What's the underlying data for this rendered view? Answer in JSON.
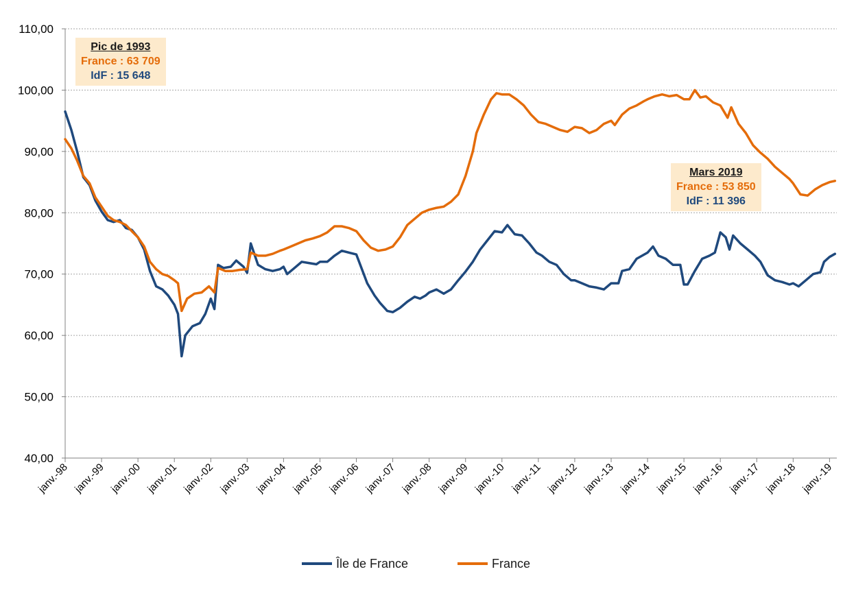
{
  "chart_data": {
    "type": "line",
    "title": "",
    "xlabel": "",
    "ylabel": "",
    "ylim": [
      40,
      110
    ],
    "yticks": [
      "40,00",
      "50,00",
      "60,00",
      "70,00",
      "80,00",
      "90,00",
      "100,00",
      "110,00"
    ],
    "xticks": [
      "janv.-98",
      "janv.-99",
      "janv.-00",
      "janv.-01",
      "janv.-02",
      "janv.-03",
      "janv.-04",
      "janv.-05",
      "janv.-06",
      "janv.-07",
      "janv.-08",
      "janv.-09",
      "janv.-10",
      "janv.-11",
      "janv.-12",
      "janv.-13",
      "janv.-14",
      "janv.-15",
      "janv.-16",
      "janv.-17",
      "janv.-18",
      "janv.-19"
    ],
    "grid": true,
    "legend_position": "bottom",
    "series": [
      {
        "name": "Île de France",
        "color": "#1f497d",
        "points": [
          [
            1998.0,
            96.5
          ],
          [
            1998.17,
            93.5
          ],
          [
            1998.33,
            90.0
          ],
          [
            1998.5,
            85.8
          ],
          [
            1998.67,
            84.5
          ],
          [
            1998.83,
            82.0
          ],
          [
            1999.0,
            80.2
          ],
          [
            1999.17,
            78.8
          ],
          [
            1999.33,
            78.5
          ],
          [
            1999.5,
            78.8
          ],
          [
            1999.67,
            77.5
          ],
          [
            1999.83,
            77.2
          ],
          [
            2000.0,
            76.0
          ],
          [
            2000.17,
            74.0
          ],
          [
            2000.33,
            70.5
          ],
          [
            2000.5,
            68.0
          ],
          [
            2000.67,
            67.5
          ],
          [
            2000.83,
            66.5
          ],
          [
            2001.0,
            65.0
          ],
          [
            2001.1,
            63.5
          ],
          [
            2001.2,
            56.6
          ],
          [
            2001.3,
            60.0
          ],
          [
            2001.5,
            61.5
          ],
          [
            2001.7,
            62.0
          ],
          [
            2001.85,
            63.5
          ],
          [
            2002.0,
            66.0
          ],
          [
            2002.1,
            64.3
          ],
          [
            2002.2,
            71.5
          ],
          [
            2002.35,
            71.0
          ],
          [
            2002.55,
            71.2
          ],
          [
            2002.7,
            72.2
          ],
          [
            2002.9,
            71.2
          ],
          [
            2003.0,
            70.2
          ],
          [
            2003.1,
            75.0
          ],
          [
            2003.3,
            71.5
          ],
          [
            2003.5,
            70.8
          ],
          [
            2003.7,
            70.5
          ],
          [
            2003.9,
            70.8
          ],
          [
            2004.0,
            71.2
          ],
          [
            2004.1,
            70.0
          ],
          [
            2004.3,
            71.0
          ],
          [
            2004.5,
            72.0
          ],
          [
            2004.7,
            71.8
          ],
          [
            2004.9,
            71.6
          ],
          [
            2005.0,
            72.0
          ],
          [
            2005.2,
            72.0
          ],
          [
            2005.4,
            73.0
          ],
          [
            2005.6,
            73.8
          ],
          [
            2005.8,
            73.5
          ],
          [
            2006.0,
            73.2
          ],
          [
            2006.3,
            68.5
          ],
          [
            2006.5,
            66.5
          ],
          [
            2006.65,
            65.3
          ],
          [
            2006.85,
            64.0
          ],
          [
            2007.0,
            63.8
          ],
          [
            2007.2,
            64.5
          ],
          [
            2007.4,
            65.5
          ],
          [
            2007.6,
            66.3
          ],
          [
            2007.75,
            66.0
          ],
          [
            2007.9,
            66.5
          ],
          [
            2008.0,
            67.0
          ],
          [
            2008.2,
            67.5
          ],
          [
            2008.4,
            66.8
          ],
          [
            2008.6,
            67.5
          ],
          [
            2008.8,
            69.0
          ],
          [
            2009.0,
            70.4
          ],
          [
            2009.2,
            72.0
          ],
          [
            2009.4,
            74.0
          ],
          [
            2009.6,
            75.5
          ],
          [
            2009.8,
            77.0
          ],
          [
            2010.0,
            76.8
          ],
          [
            2010.15,
            78.0
          ],
          [
            2010.35,
            76.5
          ],
          [
            2010.55,
            76.3
          ],
          [
            2010.75,
            75.0
          ],
          [
            2010.95,
            73.5
          ],
          [
            2011.1,
            73.0
          ],
          [
            2011.3,
            72.0
          ],
          [
            2011.5,
            71.5
          ],
          [
            2011.7,
            70.0
          ],
          [
            2011.9,
            69.0
          ],
          [
            2012.0,
            69.0
          ],
          [
            2012.2,
            68.5
          ],
          [
            2012.4,
            68.0
          ],
          [
            2012.6,
            67.8
          ],
          [
            2012.8,
            67.5
          ],
          [
            2013.0,
            68.5
          ],
          [
            2013.2,
            68.5
          ],
          [
            2013.3,
            70.5
          ],
          [
            2013.5,
            70.8
          ],
          [
            2013.7,
            72.5
          ],
          [
            2013.85,
            73.0
          ],
          [
            2014.0,
            73.5
          ],
          [
            2014.15,
            74.5
          ],
          [
            2014.3,
            73.0
          ],
          [
            2014.5,
            72.5
          ],
          [
            2014.7,
            71.5
          ],
          [
            2014.9,
            71.5
          ],
          [
            2015.0,
            68.3
          ],
          [
            2015.1,
            68.3
          ],
          [
            2015.3,
            70.5
          ],
          [
            2015.5,
            72.5
          ],
          [
            2015.7,
            73.0
          ],
          [
            2015.85,
            73.5
          ],
          [
            2016.0,
            76.8
          ],
          [
            2016.15,
            76.0
          ],
          [
            2016.25,
            74.0
          ],
          [
            2016.35,
            76.3
          ],
          [
            2016.55,
            75.0
          ],
          [
            2016.75,
            74.0
          ],
          [
            2016.95,
            73.0
          ],
          [
            2017.1,
            72.0
          ],
          [
            2017.3,
            69.8
          ],
          [
            2017.5,
            69.0
          ],
          [
            2017.7,
            68.7
          ],
          [
            2017.9,
            68.3
          ],
          [
            2018.0,
            68.5
          ],
          [
            2018.15,
            68.0
          ],
          [
            2018.35,
            69.0
          ],
          [
            2018.55,
            70.0
          ],
          [
            2018.75,
            70.3
          ],
          [
            2018.85,
            72.0
          ],
          [
            2019.0,
            72.8
          ],
          [
            2019.15,
            73.3
          ]
        ]
      },
      {
        "name": "France",
        "color": "#e46c0a",
        "points": [
          [
            1998.0,
            92.0
          ],
          [
            1998.17,
            90.5
          ],
          [
            1998.33,
            88.5
          ],
          [
            1998.5,
            86.0
          ],
          [
            1998.67,
            84.8
          ],
          [
            1998.83,
            82.5
          ],
          [
            1999.0,
            81.0
          ],
          [
            1999.17,
            79.5
          ],
          [
            1999.33,
            78.8
          ],
          [
            1999.5,
            78.5
          ],
          [
            1999.67,
            78.0
          ],
          [
            1999.83,
            77.0
          ],
          [
            2000.0,
            76.0
          ],
          [
            2000.17,
            74.5
          ],
          [
            2000.33,
            72.0
          ],
          [
            2000.5,
            70.8
          ],
          [
            2000.67,
            70.0
          ],
          [
            2000.83,
            69.7
          ],
          [
            2001.0,
            69.0
          ],
          [
            2001.1,
            68.5
          ],
          [
            2001.2,
            64.0
          ],
          [
            2001.35,
            66.0
          ],
          [
            2001.55,
            66.8
          ],
          [
            2001.75,
            67.0
          ],
          [
            2001.95,
            68.0
          ],
          [
            2002.1,
            67.0
          ],
          [
            2002.2,
            71.0
          ],
          [
            2002.4,
            70.5
          ],
          [
            2002.6,
            70.5
          ],
          [
            2002.8,
            70.7
          ],
          [
            2003.0,
            70.8
          ],
          [
            2003.1,
            73.5
          ],
          [
            2003.3,
            73.0
          ],
          [
            2003.5,
            73.0
          ],
          [
            2003.7,
            73.3
          ],
          [
            2003.9,
            73.8
          ],
          [
            2004.0,
            74.0
          ],
          [
            2004.2,
            74.5
          ],
          [
            2004.4,
            75.0
          ],
          [
            2004.6,
            75.5
          ],
          [
            2004.8,
            75.8
          ],
          [
            2005.0,
            76.2
          ],
          [
            2005.2,
            76.8
          ],
          [
            2005.4,
            77.8
          ],
          [
            2005.6,
            77.8
          ],
          [
            2005.8,
            77.5
          ],
          [
            2006.0,
            77.0
          ],
          [
            2006.2,
            75.5
          ],
          [
            2006.4,
            74.3
          ],
          [
            2006.6,
            73.8
          ],
          [
            2006.8,
            74.0
          ],
          [
            2007.0,
            74.5
          ],
          [
            2007.2,
            76.0
          ],
          [
            2007.4,
            78.0
          ],
          [
            2007.6,
            79.0
          ],
          [
            2007.8,
            80.0
          ],
          [
            2008.0,
            80.5
          ],
          [
            2008.2,
            80.8
          ],
          [
            2008.4,
            81.0
          ],
          [
            2008.6,
            81.8
          ],
          [
            2008.8,
            83.0
          ],
          [
            2009.0,
            86.0
          ],
          [
            2009.2,
            90.0
          ],
          [
            2009.3,
            93.0
          ],
          [
            2009.5,
            96.0
          ],
          [
            2009.7,
            98.5
          ],
          [
            2009.85,
            99.5
          ],
          [
            2010.0,
            99.3
          ],
          [
            2010.2,
            99.3
          ],
          [
            2010.4,
            98.5
          ],
          [
            2010.6,
            97.5
          ],
          [
            2010.8,
            96.0
          ],
          [
            2011.0,
            94.8
          ],
          [
            2011.2,
            94.5
          ],
          [
            2011.4,
            94.0
          ],
          [
            2011.6,
            93.5
          ],
          [
            2011.8,
            93.2
          ],
          [
            2012.0,
            94.0
          ],
          [
            2012.2,
            93.8
          ],
          [
            2012.4,
            93.0
          ],
          [
            2012.6,
            93.5
          ],
          [
            2012.8,
            94.5
          ],
          [
            2013.0,
            95.0
          ],
          [
            2013.1,
            94.3
          ],
          [
            2013.3,
            96.0
          ],
          [
            2013.5,
            97.0
          ],
          [
            2013.7,
            97.5
          ],
          [
            2013.9,
            98.2
          ],
          [
            2014.0,
            98.5
          ],
          [
            2014.2,
            99.0
          ],
          [
            2014.4,
            99.3
          ],
          [
            2014.6,
            99.0
          ],
          [
            2014.8,
            99.2
          ],
          [
            2015.0,
            98.5
          ],
          [
            2015.15,
            98.5
          ],
          [
            2015.3,
            100.0
          ],
          [
            2015.45,
            98.8
          ],
          [
            2015.6,
            99.0
          ],
          [
            2015.8,
            98.0
          ],
          [
            2016.0,
            97.5
          ],
          [
            2016.2,
            95.5
          ],
          [
            2016.3,
            97.2
          ],
          [
            2016.5,
            94.5
          ],
          [
            2016.7,
            93.0
          ],
          [
            2016.9,
            91.0
          ],
          [
            2017.1,
            89.8
          ],
          [
            2017.3,
            88.8
          ],
          [
            2017.5,
            87.5
          ],
          [
            2017.7,
            86.5
          ],
          [
            2017.9,
            85.5
          ],
          [
            2018.0,
            84.8
          ],
          [
            2018.2,
            83.0
          ],
          [
            2018.4,
            82.8
          ],
          [
            2018.6,
            83.8
          ],
          [
            2018.8,
            84.5
          ],
          [
            2019.0,
            85.0
          ],
          [
            2019.15,
            85.2
          ]
        ]
      }
    ]
  },
  "annotations": [
    {
      "title": "Pic de 1993",
      "line1": "France : 63 709",
      "line2": "IdF : 15 648"
    },
    {
      "title": "Mars 2019",
      "line1": "France : 53 850",
      "line2": "IdF : 11 396"
    }
  ],
  "colors": {
    "idf": "#1f497d",
    "france": "#e46c0a",
    "annotation_bg": "#fdeacc"
  }
}
